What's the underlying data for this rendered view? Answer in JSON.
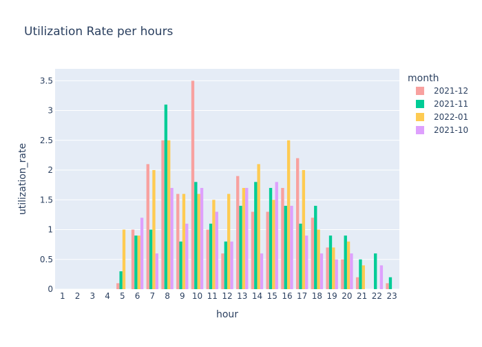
{
  "chart_data": {
    "type": "bar",
    "title": "Utilization Rate per hours",
    "xlabel": "hour",
    "ylabel": "utilization_rate",
    "legend_title": "month",
    "legend_position": "right",
    "grid": true,
    "ylim": [
      0,
      3.7
    ],
    "categories": [
      "1",
      "2",
      "3",
      "4",
      "5",
      "6",
      "7",
      "8",
      "9",
      "10",
      "11",
      "12",
      "13",
      "14",
      "15",
      "16",
      "17",
      "18",
      "19",
      "20",
      "21",
      "22",
      "23"
    ],
    "y_ticks": [
      0,
      0.5,
      1,
      1.5,
      2,
      2.5,
      3,
      3.5
    ],
    "y_tick_labels": [
      "0",
      "0.5",
      "1",
      "1.5",
      "2",
      "2.5",
      "3",
      "3.5"
    ],
    "series": [
      {
        "name": "2021-12",
        "color": "#F8A19F",
        "values": [
          0,
          0,
          0,
          0,
          0.1,
          1.0,
          2.1,
          2.5,
          1.6,
          3.5,
          1.0,
          0.6,
          1.9,
          1.3,
          1.3,
          1.7,
          2.2,
          1.2,
          0.7,
          0.5,
          0.2,
          0,
          0.1
        ]
      },
      {
        "name": "2021-11",
        "color": "#00CC96",
        "values": [
          0,
          0,
          0,
          0,
          0.3,
          0.9,
          1.0,
          3.1,
          0.8,
          1.8,
          1.1,
          0.8,
          1.4,
          1.8,
          1.7,
          1.4,
          1.1,
          1.4,
          0.9,
          0.9,
          0.5,
          0.6,
          0.2
        ]
      },
      {
        "name": "2022-01",
        "color": "#FECB52",
        "values": [
          0,
          0,
          0,
          0,
          1.0,
          0.9,
          2.0,
          2.5,
          1.6,
          1.6,
          1.5,
          1.6,
          1.7,
          2.1,
          1.5,
          2.5,
          2.0,
          1.0,
          0.7,
          0.8,
          0.4,
          0,
          0
        ]
      },
      {
        "name": "2021-10",
        "color": "#DEA0FD",
        "values": [
          0,
          0,
          0,
          0,
          0,
          1.2,
          0.6,
          1.7,
          1.1,
          1.7,
          1.3,
          0.8,
          1.7,
          0.6,
          1.8,
          1.4,
          0.9,
          0.6,
          0.5,
          0.6,
          0,
          0.4,
          0
        ]
      }
    ]
  },
  "colors": {
    "plot_background": "#E5ECF6",
    "gridline": "#FFFFFF",
    "text": "#2A3F5F"
  }
}
